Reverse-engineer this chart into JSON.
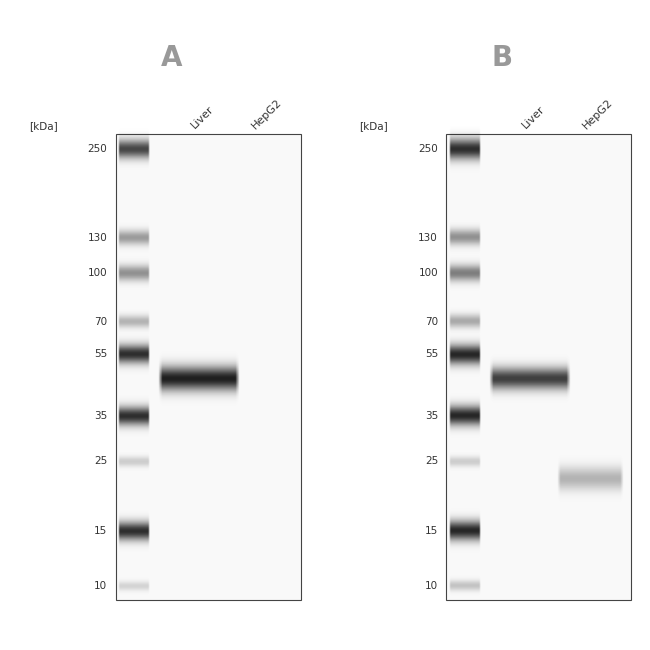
{
  "bg_color": "#ffffff",
  "gel_bg": "#f9f9f9",
  "panel_labels": [
    "A",
    "B"
  ],
  "kda_label": "[kDa]",
  "sample_labels": [
    "Liver",
    "HepG2"
  ],
  "mw_markers": [
    250,
    130,
    100,
    70,
    55,
    35,
    25,
    15,
    10
  ],
  "log_min": 0.9542425094393248,
  "log_max": 2.4313637641589874,
  "panels": [
    {
      "ladder_bands": [
        {
          "kda": 250,
          "darkness": 0.72,
          "thick": 1.8
        },
        {
          "kda": 130,
          "darkness": 0.38,
          "thick": 1.4
        },
        {
          "kda": 100,
          "darkness": 0.42,
          "thick": 1.5
        },
        {
          "kda": 70,
          "darkness": 0.28,
          "thick": 1.2
        },
        {
          "kda": 55,
          "darkness": 0.82,
          "thick": 1.8
        },
        {
          "kda": 35,
          "darkness": 0.82,
          "thick": 1.8
        },
        {
          "kda": 25,
          "darkness": 0.18,
          "thick": 1.0
        },
        {
          "kda": 15,
          "darkness": 0.82,
          "thick": 1.8
        },
        {
          "kda": 10,
          "darkness": 0.15,
          "thick": 0.9
        }
      ],
      "liver_bands": [
        {
          "kda": 46,
          "darkness": 0.88,
          "thick": 2.0
        }
      ],
      "hepg2_bands": []
    },
    {
      "ladder_bands": [
        {
          "kda": 250,
          "darkness": 0.82,
          "thick": 2.0
        },
        {
          "kda": 130,
          "darkness": 0.42,
          "thick": 1.5
        },
        {
          "kda": 100,
          "darkness": 0.5,
          "thick": 1.6
        },
        {
          "kda": 70,
          "darkness": 0.32,
          "thick": 1.3
        },
        {
          "kda": 55,
          "darkness": 0.85,
          "thick": 1.9
        },
        {
          "kda": 35,
          "darkness": 0.85,
          "thick": 1.9
        },
        {
          "kda": 25,
          "darkness": 0.18,
          "thick": 1.0
        },
        {
          "kda": 15,
          "darkness": 0.85,
          "thick": 1.9
        },
        {
          "kda": 10,
          "darkness": 0.22,
          "thick": 1.0
        }
      ],
      "liver_bands": [
        {
          "kda": 46,
          "darkness": 0.75,
          "thick": 1.8
        }
      ],
      "hepg2_bands": [
        {
          "kda": 22,
          "darkness": 0.28,
          "thick": 1.5
        }
      ]
    }
  ]
}
